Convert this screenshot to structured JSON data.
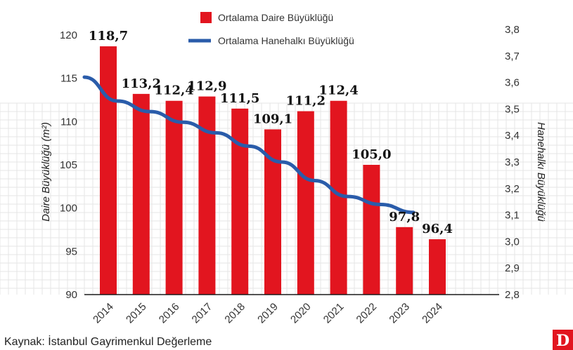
{
  "chart_data": {
    "type": "bar",
    "categories": [
      "2014",
      "2015",
      "2016",
      "2017",
      "2018",
      "2019",
      "2020",
      "2021",
      "2022",
      "2023",
      "2024"
    ],
    "series": [
      {
        "name": "Ortalama Daire Büyüklüğü",
        "type": "bar",
        "axis": "left",
        "color": "#e2151f",
        "values": [
          118.7,
          113.2,
          112.4,
          112.9,
          111.5,
          109.1,
          111.2,
          112.4,
          105.0,
          97.8,
          96.4
        ],
        "labels": [
          "118,7",
          "113,2",
          "112,4",
          "112,9",
          "111,5",
          "109,1",
          "111,2",
          "112,4",
          "105,0",
          "97,8",
          "96,4"
        ]
      },
      {
        "name": "Ortalama Hanehalkı Büyüklüğü",
        "type": "line",
        "axis": "right",
        "color": "#2a5caa",
        "values": [
          3.62,
          3.53,
          3.49,
          3.45,
          3.41,
          3.36,
          3.3,
          3.23,
          3.17,
          3.14,
          3.11
        ]
      }
    ],
    "y_left": {
      "label": "Daire Büyüklüğü (m²)",
      "ylim": [
        90,
        120
      ],
      "ticks": [
        90,
        95,
        100,
        105,
        110,
        115,
        120
      ],
      "tick_labels": [
        "90",
        "95",
        "100",
        "105",
        "110",
        "115",
        "120"
      ]
    },
    "y_right": {
      "label": "Hanehalkı Büyüklüğü",
      "ylim": [
        2.8,
        3.8
      ],
      "ticks": [
        2.8,
        2.9,
        3.0,
        3.1,
        3.2,
        3.3,
        3.4,
        3.5,
        3.6,
        3.7,
        3.8
      ],
      "tick_labels": [
        "2,8",
        "2,9",
        "3,0",
        "3,1",
        "3,2",
        "3,3",
        "3,4",
        "3,5",
        "3,6",
        "3,7",
        "3,8"
      ]
    },
    "legend_position": "top",
    "grid": true,
    "source": "Kaynak: İstanbul Gayrimenkul Değerleme",
    "logo": "D"
  }
}
